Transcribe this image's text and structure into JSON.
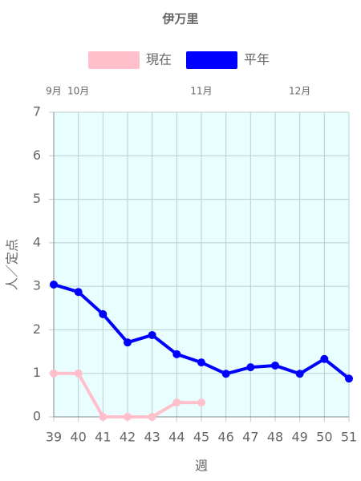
{
  "chart_data": {
    "type": "line",
    "title": "伊万里",
    "x": [
      39,
      40,
      41,
      42,
      43,
      44,
      45,
      46,
      47,
      48,
      49,
      50,
      51
    ],
    "xlim": [
      39,
      51
    ],
    "xticks": [
      39,
      40,
      41,
      42,
      43,
      44,
      45,
      46,
      47,
      48,
      49,
      50,
      51
    ],
    "month_ticks": [
      {
        "value": 39,
        "label": "9月"
      },
      {
        "value": 40,
        "label": "10月"
      },
      {
        "value": 45,
        "label": "11月"
      },
      {
        "value": 49,
        "label": "12月"
      }
    ],
    "ylim": [
      0,
      7
    ],
    "yticks": [
      0,
      1,
      2,
      3,
      4,
      5,
      6,
      7
    ],
    "x_label": "週",
    "y_label": "人／定点",
    "grid": true,
    "series": [
      {
        "name": "現在",
        "color": "#ffc0cb",
        "values": [
          1,
          1,
          0,
          0,
          0,
          0.33,
          0.33,
          null,
          null,
          null,
          null,
          null,
          null
        ]
      },
      {
        "name": "平年",
        "color": "#0000ff",
        "values": [
          3.04,
          2.87,
          2.36,
          1.71,
          1.88,
          1.44,
          1.25,
          0.99,
          1.14,
          1.18,
          0.99,
          1.33,
          0.88
        ]
      }
    ]
  }
}
